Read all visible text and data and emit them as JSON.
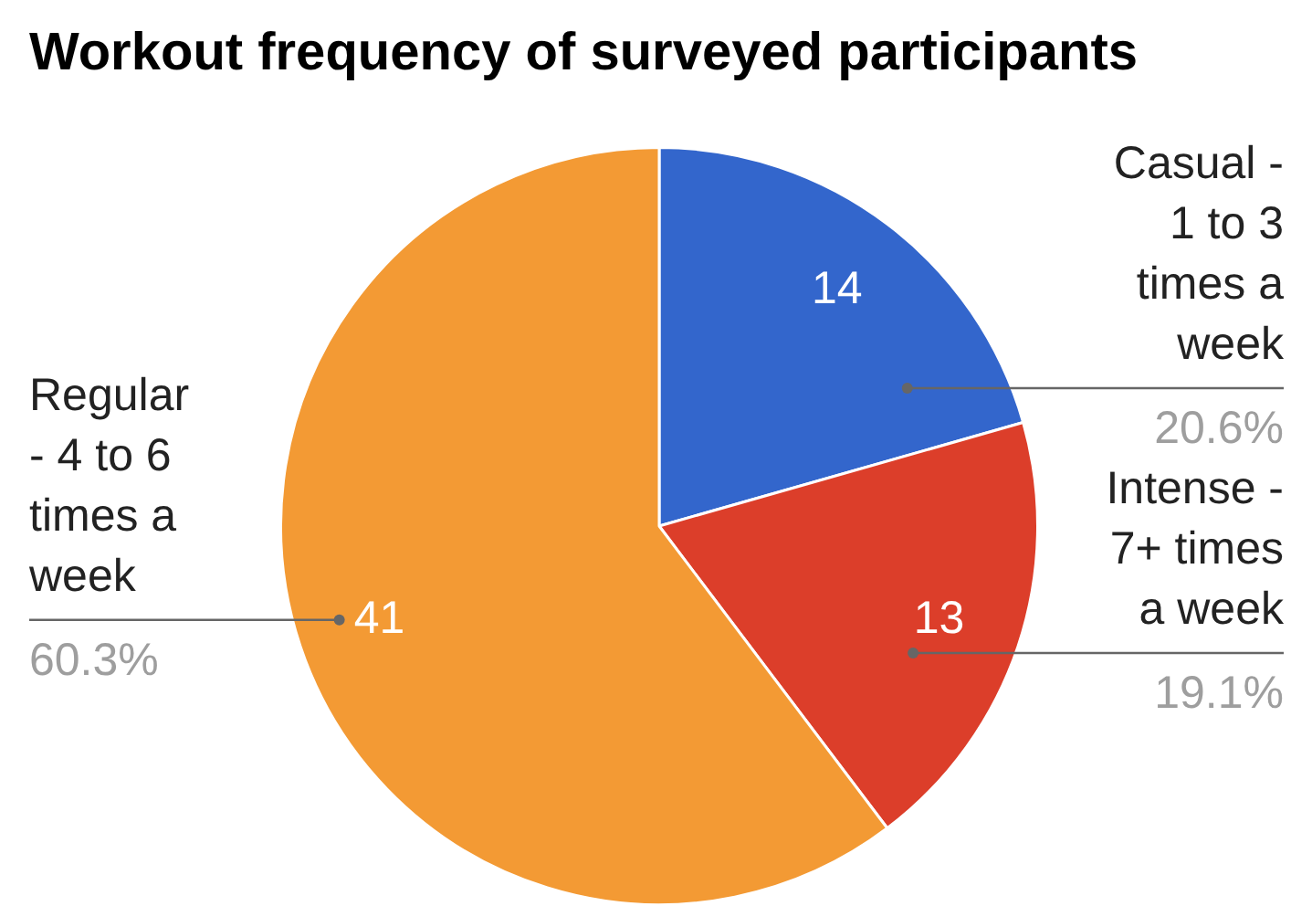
{
  "chart_data": {
    "type": "pie",
    "title": "Workout frequency of surveyed participants",
    "categories": [
      "Casual - 1 to 3 times a week",
      "Intense - 7+ times a week",
      "Regular - 4 to 6 times a week"
    ],
    "values": [
      14,
      13,
      41
    ],
    "colors": [
      "#3366cc",
      "#dc3e2a",
      "#f39a34"
    ],
    "data_labels": true,
    "annotations": [
      "20.6%",
      "19.1%",
      "60.3%"
    ]
  }
}
